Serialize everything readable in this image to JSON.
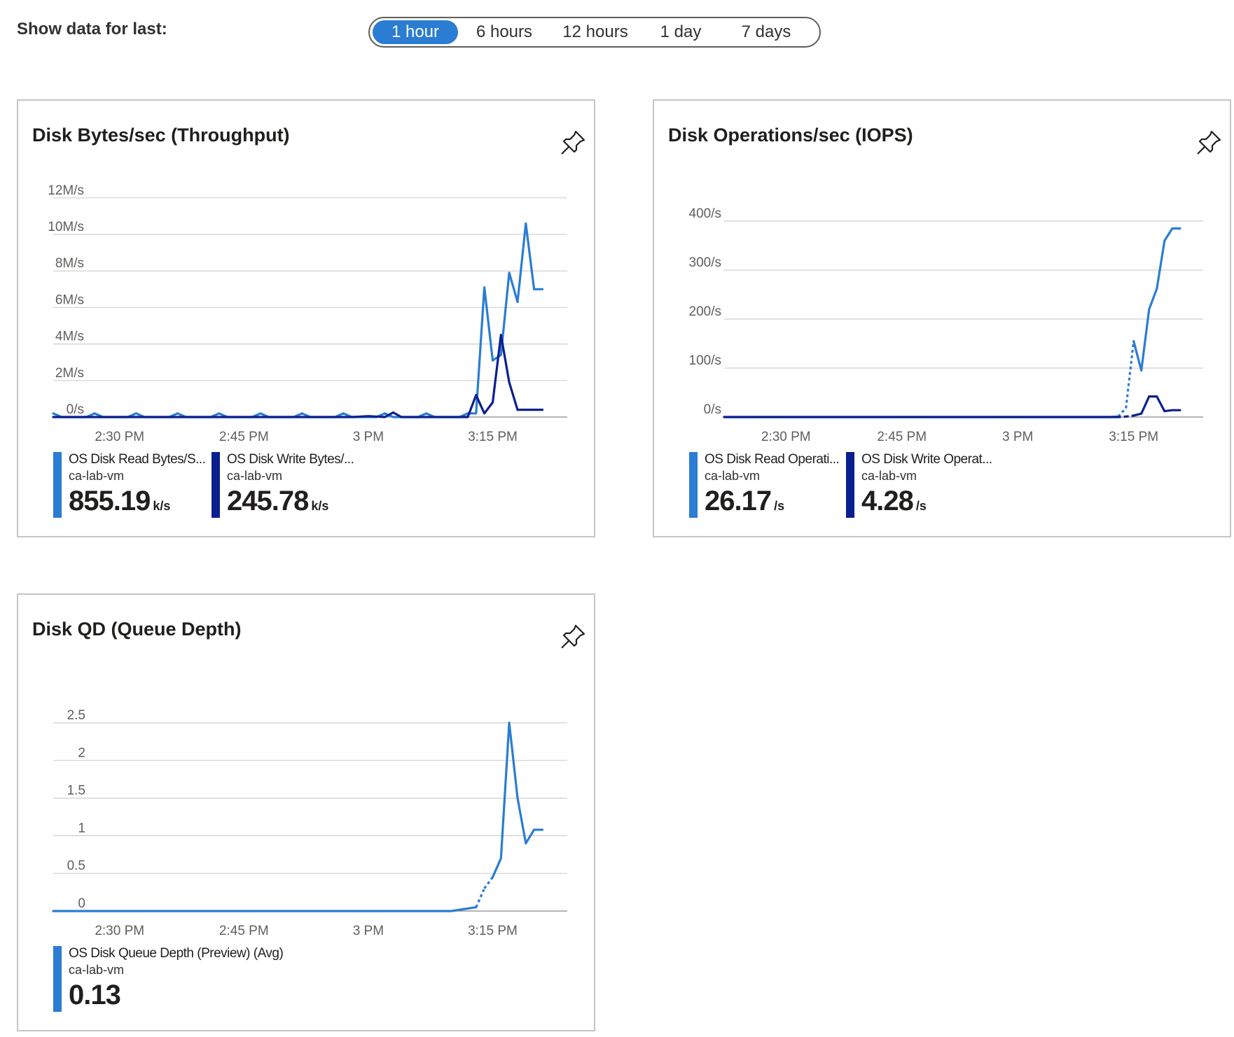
{
  "header": {
    "label": "Show data for last:",
    "ranges": [
      "1 hour",
      "6 hours",
      "12 hours",
      "1 day",
      "7 days"
    ],
    "selected": "1 hour"
  },
  "colors": {
    "read": "#2b7cd3",
    "write": "#0a1f8f",
    "grid": "#d2d0ce",
    "axis": "#8a8886"
  },
  "cards": {
    "throughput": {
      "title": "Disk Bytes/sec (Throughput)",
      "pin_icon": "pin-icon",
      "legend": [
        {
          "name": "OS Disk Read Bytes/S...",
          "resource": "ca-lab-vm",
          "value": "855.19",
          "unit": "k/s",
          "color": "#2b7cd3"
        },
        {
          "name": "OS Disk Write Bytes/...",
          "resource": "ca-lab-vm",
          "value": "245.78",
          "unit": "k/s",
          "color": "#0a1f8f"
        }
      ]
    },
    "iops": {
      "title": "Disk Operations/sec (IOPS)",
      "pin_icon": "pin-icon",
      "legend": [
        {
          "name": "OS Disk Read Operati...",
          "resource": "ca-lab-vm",
          "value": "26.17",
          "unit": "/s",
          "color": "#2b7cd3"
        },
        {
          "name": "OS Disk Write Operat...",
          "resource": "ca-lab-vm",
          "value": "4.28",
          "unit": "/s",
          "color": "#0a1f8f"
        }
      ]
    },
    "queue": {
      "title": "Disk QD (Queue Depth)",
      "pin_icon": "pin-icon",
      "legend": [
        {
          "name": "OS Disk Queue Depth (Preview) (Avg)",
          "resource": "ca-lab-vm",
          "value": "0.13",
          "unit": "",
          "color": "#2b7cd3"
        }
      ]
    }
  },
  "chart_data": [
    {
      "type": "line",
      "title": "Disk Bytes/sec (Throughput)",
      "x_tick_labels": [
        "2:30 PM",
        "2:45 PM",
        "3 PM",
        "3:15 PM"
      ],
      "x_ticks": [
        10,
        25,
        40,
        55
      ],
      "xlim": [
        2,
        64
      ],
      "y_tick_labels": [
        "0/s",
        "2M/s",
        "4M/s",
        "6M/s",
        "8M/s",
        "10M/s",
        "12M/s"
      ],
      "y_ticks": [
        0,
        2,
        4,
        6,
        8,
        10,
        12
      ],
      "ylim": [
        0,
        12.3
      ],
      "y_unit": "M/s",
      "series": [
        {
          "name": "OS Disk Read Bytes/S...",
          "color": "#2b7cd3",
          "x": [
            2,
            3,
            4,
            5,
            6,
            7,
            8,
            9,
            10,
            11,
            12,
            13,
            14,
            15,
            16,
            17,
            18,
            19,
            20,
            21,
            22,
            23,
            24,
            25,
            26,
            27,
            28,
            29,
            30,
            31,
            32,
            33,
            34,
            35,
            36,
            37,
            38,
            39,
            40,
            41,
            42,
            43,
            44,
            45,
            46,
            47,
            48,
            49,
            50,
            51,
            52,
            53,
            54,
            55,
            56,
            57,
            58,
            59,
            60,
            61
          ],
          "y": [
            0.2,
            0,
            0,
            0,
            0,
            0.2,
            0,
            0,
            0,
            0,
            0.2,
            0,
            0,
            0,
            0,
            0.2,
            0,
            0,
            0,
            0,
            0.2,
            0,
            0,
            0,
            0,
            0.2,
            0,
            0,
            0,
            0,
            0.2,
            0,
            0,
            0,
            0,
            0.2,
            0,
            0,
            0,
            0,
            0.2,
            0,
            0,
            0,
            0,
            0.2,
            0,
            0,
            0,
            0,
            0.2,
            0.2,
            7.1,
            3.1,
            3.4,
            7.9,
            6.3,
            10.6,
            7,
            7
          ]
        },
        {
          "name": "OS Disk Write Bytes/...",
          "color": "#0a1f8f",
          "x": [
            2,
            4,
            6,
            8,
            10,
            12,
            14,
            16,
            18,
            20,
            22,
            24,
            26,
            28,
            30,
            32,
            34,
            36,
            38,
            40,
            42,
            43,
            44,
            46,
            48,
            50,
            51,
            52,
            53,
            54,
            55,
            56,
            57,
            58,
            59,
            60,
            61
          ],
          "y": [
            0,
            0,
            0,
            0,
            0,
            0,
            0,
            0,
            0,
            0,
            0,
            0,
            0,
            0,
            0,
            0,
            0,
            0,
            0,
            0.05,
            0,
            0.25,
            0,
            0,
            0,
            0,
            0,
            0,
            1.2,
            0.2,
            0.8,
            4.5,
            1.9,
            0.4,
            0.4,
            0.4,
            0.4
          ]
        }
      ]
    },
    {
      "type": "line",
      "title": "Disk Operations/sec (IOPS)",
      "x_tick_labels": [
        "2:30 PM",
        "2:45 PM",
        "3 PM",
        "3:15 PM"
      ],
      "x_ticks": [
        10,
        25,
        40,
        55
      ],
      "xlim": [
        2,
        64
      ],
      "y_tick_labels": [
        "0/s",
        "100/s",
        "200/s",
        "300/s",
        "400/s"
      ],
      "y_ticks": [
        0,
        100,
        200,
        300,
        400
      ],
      "ylim": [
        0,
        400
      ],
      "y_unit": "/s",
      "series": [
        {
          "name": "OS Disk Read Operati...",
          "color": "#2b7cd3",
          "x": [
            2,
            10,
            20,
            30,
            40,
            50,
            52,
            53,
            54,
            55,
            56,
            57,
            58,
            59,
            60,
            61
          ],
          "y": [
            0,
            0,
            0,
            0,
            0,
            0,
            0,
            1,
            18,
            155,
            95,
            220,
            262,
            360,
            385,
            385
          ],
          "dashed_segments": [
            [
              53,
              55
            ]
          ]
        },
        {
          "name": "OS Disk Write Operat...",
          "color": "#0a1f8f",
          "x": [
            2,
            10,
            20,
            30,
            40,
            50,
            53,
            54,
            55,
            56,
            57,
            58,
            59,
            60,
            61
          ],
          "y": [
            0,
            0,
            0,
            0,
            0,
            0,
            0,
            1,
            3,
            7,
            42,
            42,
            12,
            14,
            14
          ],
          "dashed_segments": [
            [
              53,
              55
            ]
          ]
        }
      ]
    },
    {
      "type": "line",
      "title": "Disk QD (Queue Depth)",
      "x_tick_labels": [
        "2:30 PM",
        "2:45 PM",
        "3 PM",
        "3:15 PM"
      ],
      "x_ticks": [
        10,
        25,
        40,
        55
      ],
      "xlim": [
        2,
        64
      ],
      "y_tick_labels": [
        "0",
        "0.5",
        "1",
        "1.5",
        "2",
        "2.5"
      ],
      "y_ticks": [
        0,
        0.5,
        1,
        1.5,
        2,
        2.5
      ],
      "ylim": [
        0,
        2.5
      ],
      "series": [
        {
          "name": "OS Disk Queue Depth (Preview) (Avg)",
          "color": "#2b7cd3",
          "x": [
            2,
            10,
            20,
            30,
            40,
            50,
            53,
            54,
            55,
            56,
            57,
            58,
            59,
            60,
            61
          ],
          "y": [
            0,
            0,
            0,
            0,
            0,
            0,
            0.05,
            0.3,
            0.45,
            0.7,
            2.5,
            1.5,
            0.9,
            1.08,
            1.08
          ],
          "dashed_segments": [
            [
              53,
              55
            ]
          ]
        }
      ]
    }
  ]
}
